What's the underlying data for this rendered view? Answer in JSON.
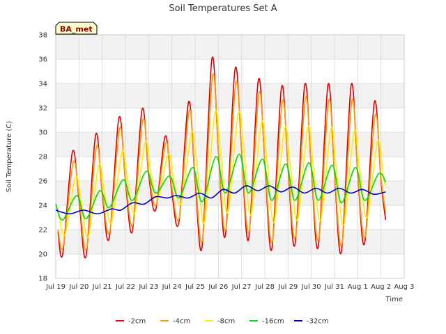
{
  "chart_data": {
    "type": "line",
    "title": "Soil Temperatures Set A",
    "xlabel": "Time",
    "ylabel": "Soil Temperature (C)",
    "badge": "BA_met",
    "ylim": [
      18,
      38
    ],
    "y_ticks": [
      18,
      20,
      22,
      24,
      26,
      28,
      30,
      32,
      34,
      36,
      38
    ],
    "xlim": [
      0,
      15
    ],
    "x_ticks": [
      {
        "x": 0,
        "label": "Jul 19"
      },
      {
        "x": 1,
        "label": "Jul 20"
      },
      {
        "x": 2,
        "label": "Jul 21"
      },
      {
        "x": 3,
        "label": "Jul 22"
      },
      {
        "x": 4,
        "label": "Jul 23"
      },
      {
        "x": 5,
        "label": "Jul 24"
      },
      {
        "x": 6,
        "label": "Jul 25"
      },
      {
        "x": 7,
        "label": "Jul 26"
      },
      {
        "x": 8,
        "label": "Jul 27"
      },
      {
        "x": 9,
        "label": "Jul 28"
      },
      {
        "x": 10,
        "label": "Jul 29"
      },
      {
        "x": 11,
        "label": "Jul 30"
      },
      {
        "x": 12,
        "label": "Jul 31"
      },
      {
        "x": 13,
        "label": "Aug 1"
      },
      {
        "x": 14,
        "label": "Aug 2"
      },
      {
        "x": 15,
        "label": "Aug 3"
      }
    ],
    "grid": true,
    "legend_position": "bottom",
    "series": [
      {
        "name": "-2cm",
        "color": "#e00000",
        "x": [
          0.1,
          0.3,
          0.72,
          1.0,
          1.3,
          1.72,
          2.0,
          2.3,
          2.72,
          3.0,
          3.3,
          3.72,
          4.0,
          4.3,
          4.72,
          5.0,
          5.3,
          5.72,
          6.0,
          6.3,
          6.72,
          7.0,
          7.3,
          7.72,
          8.0,
          8.3,
          8.72,
          9.0,
          9.3,
          9.72,
          10.0,
          10.3,
          10.72,
          11.0,
          11.3,
          11.72,
          12.0,
          12.3,
          12.72,
          13.0,
          13.3,
          13.72,
          14.0,
          14.2
        ],
        "y": [
          21.8,
          20.0,
          28.4,
          24.5,
          19.8,
          29.8,
          25.0,
          21.3,
          31.2,
          26.0,
          21.9,
          31.9,
          26.5,
          23.6,
          29.7,
          25.0,
          22.6,
          32.5,
          26.0,
          20.6,
          36.0,
          28.5,
          21.5,
          35.2,
          28.5,
          21.2,
          34.3,
          27.5,
          20.4,
          33.7,
          27.0,
          20.8,
          33.9,
          27.0,
          20.6,
          33.9,
          26.5,
          20.2,
          33.9,
          26.5,
          20.9,
          32.5,
          26.0,
          22.8
        ]
      },
      {
        "name": "-4cm",
        "color": "#ff9900",
        "x": [
          0.1,
          0.32,
          0.75,
          1.0,
          1.32,
          1.75,
          2.0,
          2.32,
          2.75,
          3.0,
          3.32,
          3.75,
          4.0,
          4.32,
          4.75,
          5.0,
          5.32,
          5.75,
          6.0,
          6.32,
          6.75,
          7.0,
          7.32,
          7.75,
          8.0,
          8.32,
          8.75,
          9.0,
          9.32,
          9.75,
          10.0,
          10.32,
          10.75,
          11.0,
          11.32,
          11.75,
          12.0,
          12.32,
          12.75,
          13.0,
          13.32,
          13.75,
          14.0,
          14.2
        ],
        "y": [
          22.0,
          20.6,
          27.5,
          24.8,
          20.4,
          28.8,
          25.2,
          21.8,
          30.3,
          26.2,
          22.4,
          31.0,
          26.8,
          24.0,
          29.2,
          25.4,
          23.0,
          31.8,
          26.4,
          21.2,
          34.6,
          28.6,
          22.0,
          34.0,
          28.6,
          21.8,
          33.2,
          27.6,
          21.0,
          32.5,
          27.2,
          21.4,
          32.8,
          27.0,
          21.2,
          32.6,
          26.6,
          20.8,
          32.6,
          26.6,
          21.4,
          31.4,
          26.2,
          23.4
        ]
      },
      {
        "name": "-8cm",
        "color": "#ffee00",
        "x": [
          0.1,
          0.4,
          0.85,
          1.1,
          1.4,
          1.85,
          2.1,
          2.4,
          2.85,
          3.1,
          3.4,
          3.85,
          4.1,
          4.4,
          4.85,
          5.1,
          5.4,
          5.85,
          6.1,
          6.4,
          6.85,
          7.1,
          7.4,
          7.85,
          8.1,
          8.4,
          8.85,
          9.1,
          9.4,
          9.85,
          10.1,
          10.4,
          10.85,
          11.1,
          11.4,
          11.85,
          12.1,
          12.4,
          12.85,
          13.1,
          13.4,
          13.85,
          14.1,
          14.2
        ],
        "y": [
          23.5,
          21.6,
          26.3,
          24.2,
          21.4,
          27.3,
          25.0,
          22.6,
          28.4,
          26.0,
          23.4,
          29.2,
          26.5,
          24.6,
          28.2,
          25.8,
          24.2,
          30.0,
          27.0,
          22.6,
          31.6,
          28.4,
          23.4,
          31.5,
          28.6,
          23.2,
          30.8,
          27.6,
          22.6,
          30.3,
          27.2,
          22.8,
          30.4,
          27.0,
          22.8,
          30.3,
          26.6,
          22.4,
          30.1,
          26.6,
          23.0,
          29.3,
          26.4,
          25.6
        ]
      },
      {
        "name": "-16cm",
        "color": "#00dd00",
        "x": [
          0.0,
          0.3,
          0.9,
          1.3,
          1.9,
          2.3,
          2.9,
          3.3,
          3.9,
          4.3,
          4.9,
          5.3,
          5.9,
          6.3,
          6.9,
          7.3,
          7.9,
          8.3,
          8.9,
          9.3,
          9.9,
          10.3,
          10.9,
          11.3,
          11.9,
          12.3,
          12.9,
          13.3,
          13.9,
          14.2
        ],
        "y": [
          24.1,
          22.8,
          24.8,
          22.9,
          25.2,
          23.8,
          26.1,
          24.4,
          26.8,
          25.0,
          26.4,
          24.6,
          27.1,
          24.3,
          28.0,
          25.0,
          28.2,
          25.0,
          27.8,
          24.4,
          27.4,
          24.4,
          27.5,
          24.4,
          27.3,
          24.2,
          27.1,
          24.4,
          26.6,
          25.9
        ]
      },
      {
        "name": "-32cm",
        "color": "#0000bb",
        "x": [
          0.0,
          0.6,
          1.2,
          1.8,
          2.4,
          2.8,
          3.3,
          3.8,
          4.3,
          4.8,
          5.2,
          5.7,
          6.2,
          6.7,
          7.2,
          7.7,
          8.2,
          8.7,
          9.2,
          9.7,
          10.2,
          10.7,
          11.2,
          11.7,
          12.2,
          12.7,
          13.2,
          13.7,
          14.2
        ],
        "y": [
          23.6,
          23.3,
          23.6,
          23.3,
          23.7,
          23.6,
          24.2,
          24.1,
          24.7,
          24.6,
          24.8,
          24.6,
          25.0,
          24.6,
          25.3,
          25.0,
          25.6,
          25.2,
          25.6,
          25.1,
          25.5,
          25.0,
          25.4,
          25.0,
          25.4,
          25.0,
          25.3,
          24.9,
          25.1
        ]
      }
    ]
  }
}
